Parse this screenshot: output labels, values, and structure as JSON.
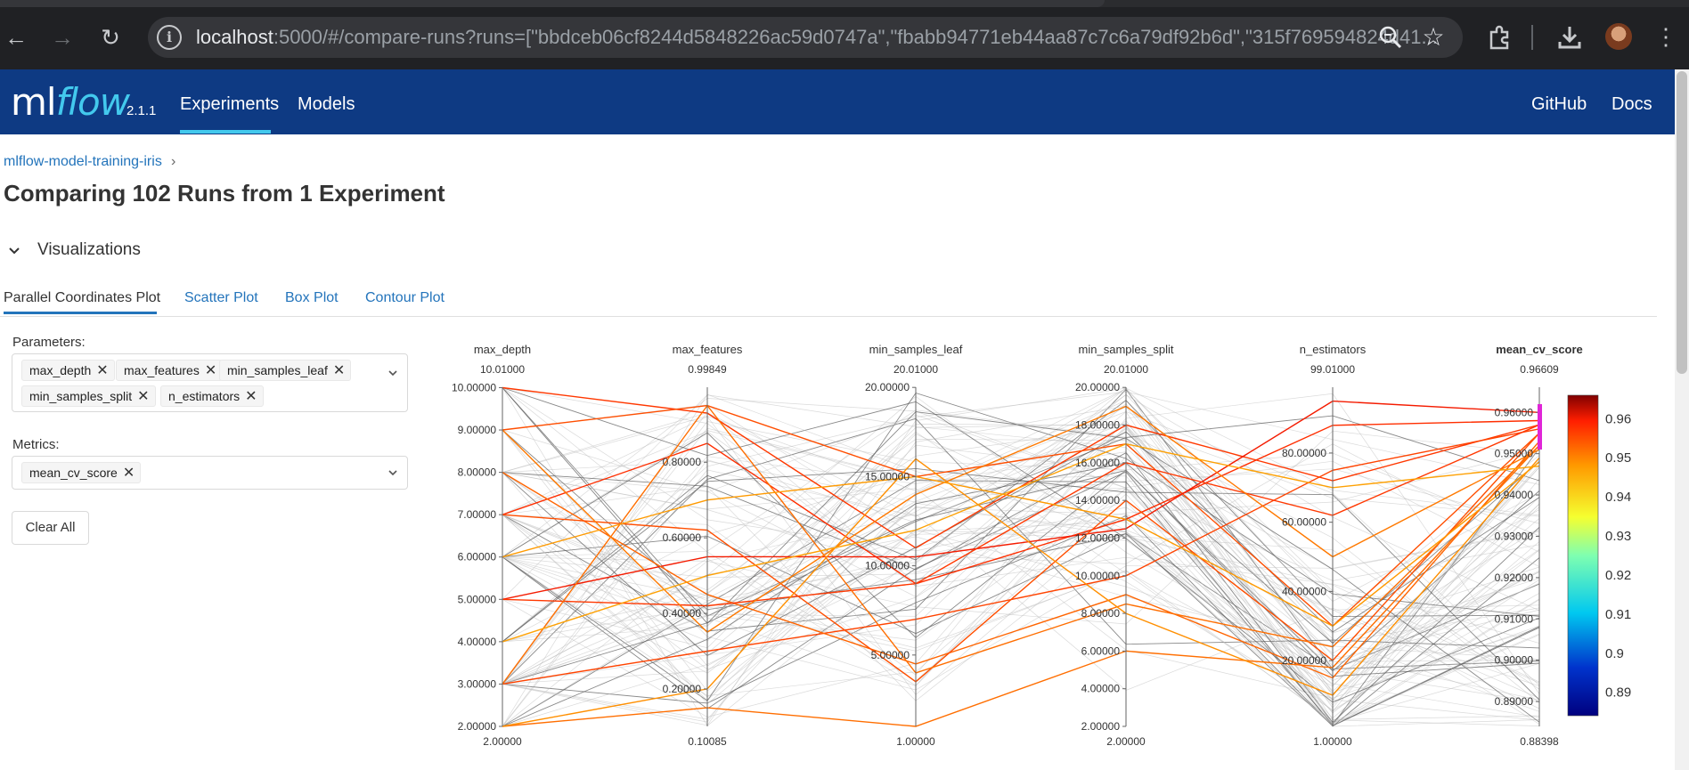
{
  "browser": {
    "url_host": "localhost",
    "url_rest": ":5000/#/compare-runs?runs=[\"bbdceb06cf8244d5848226ac59d0747a\",\"fbabb94771eb44aa87c7c6a79df92b6d\",\"315f769594824d41..."
  },
  "header": {
    "logo_ml": "ml",
    "logo_flow": "flow",
    "version": "2.1.1",
    "nav": [
      "Experiments",
      "Models"
    ],
    "nav_right": [
      "GitHub",
      "Docs"
    ]
  },
  "breadcrumb": {
    "experiment": "mlflow-model-training-iris",
    "sep": "›"
  },
  "page_title": "Comparing 102 Runs from 1 Experiment",
  "section": {
    "toggle": "⌄",
    "label": "Visualizations"
  },
  "tabs": [
    "Parallel Coordinates Plot",
    "Scatter Plot",
    "Box Plot",
    "Contour Plot"
  ],
  "parameters": {
    "label": "Parameters:",
    "chips": [
      "max_depth",
      "max_features",
      "min_samples_leaf",
      "min_samples_split",
      "n_estimators"
    ]
  },
  "metrics": {
    "label": "Metrics:",
    "chips": [
      "mean_cv_score"
    ]
  },
  "clear_all": "Clear All",
  "colors": {
    "header_bg": "#0e3a83",
    "accent": "#43c9ed",
    "link": "#2374bb",
    "metric_title": "#1e8a1e"
  },
  "chart_data": {
    "type": "parallel_coordinates",
    "axes": [
      {
        "name": "max_depth",
        "max_label": "10.01000",
        "min_label": "2.00000",
        "range": [
          2,
          10.01
        ],
        "ticks": [
          "2.00000",
          "3.00000",
          "4.00000",
          "5.00000",
          "6.00000",
          "7.00000",
          "8.00000",
          "9.00000",
          "10.00000"
        ],
        "tick_values": [
          2,
          3,
          4,
          5,
          6,
          7,
          8,
          9,
          10
        ]
      },
      {
        "name": "max_features",
        "max_label": "0.99849",
        "min_label": "0.10085",
        "range": [
          0.10085,
          0.99849
        ],
        "ticks": [
          "0.20000",
          "0.40000",
          "0.60000",
          "0.80000"
        ],
        "tick_values": [
          0.2,
          0.4,
          0.6,
          0.8
        ]
      },
      {
        "name": "min_samples_leaf",
        "max_label": "20.01000",
        "min_label": "1.00000",
        "range": [
          1,
          20.01
        ],
        "ticks": [
          "5.00000",
          "10.00000",
          "15.00000",
          "20.00000"
        ],
        "tick_values": [
          5,
          10,
          15,
          20
        ]
      },
      {
        "name": "min_samples_split",
        "max_label": "20.01000",
        "min_label": "2.00000",
        "range": [
          2,
          20.01
        ],
        "ticks": [
          "2.00000",
          "4.00000",
          "6.00000",
          "8.00000",
          "10.00000",
          "12.00000",
          "14.00000",
          "16.00000",
          "18.00000",
          "20.00000"
        ],
        "tick_values": [
          2,
          4,
          6,
          8,
          10,
          12,
          14,
          16,
          18,
          20
        ]
      },
      {
        "name": "n_estimators",
        "max_label": "99.01000",
        "min_label": "1.00000",
        "range": [
          1,
          99.01
        ],
        "ticks": [
          "20.00000",
          "40.00000",
          "60.00000",
          "80.00000"
        ],
        "tick_values": [
          20,
          40,
          60,
          80
        ]
      },
      {
        "name": "mean_cv_score",
        "max_label": "0.96609",
        "min_label": "0.88398",
        "range": [
          0.88398,
          0.96609
        ],
        "ticks": [
          "0.89000",
          "0.90000",
          "0.91000",
          "0.92000",
          "0.93000",
          "0.94000",
          "0.95000",
          "0.96000"
        ],
        "tick_values": [
          0.89,
          0.9,
          0.91,
          0.92,
          0.93,
          0.94,
          0.95,
          0.96
        ],
        "highlight": true,
        "constraint_range": [
          0.951,
          0.962
        ]
      }
    ],
    "colorscale": {
      "ticks": [
        "0.96",
        "0.95",
        "0.94",
        "0.93",
        "0.92",
        "0.91",
        "0.9",
        "0.89"
      ],
      "tick_values": [
        0.96,
        0.95,
        0.94,
        0.93,
        0.92,
        0.91,
        0.9,
        0.89
      ],
      "range": [
        0.884,
        0.966
      ]
    },
    "highlighted_runs": [
      [
        10,
        0.93,
        11,
        18,
        72,
        0.957
      ],
      [
        9,
        0.95,
        15,
        17,
        30,
        0.955
      ],
      [
        7,
        0.85,
        9,
        13,
        88,
        0.958
      ],
      [
        5,
        0.55,
        10.5,
        12.5,
        95,
        0.96
      ],
      [
        3,
        0.3,
        7,
        10,
        75,
        0.956
      ],
      [
        2,
        0.15,
        1,
        6,
        18,
        0.952
      ],
      [
        8,
        0.45,
        4.5,
        9,
        15,
        0.953
      ],
      [
        5,
        0.42,
        9,
        16,
        62,
        0.957
      ],
      [
        7,
        0.62,
        3.5,
        14,
        20,
        0.955
      ],
      [
        3,
        0.95,
        4,
        8.5,
        24,
        0.952
      ],
      [
        9,
        0.35,
        14,
        19,
        50,
        0.951
      ],
      [
        2,
        0.2,
        16,
        8,
        10,
        0.949
      ],
      [
        6,
        0.7,
        15,
        13,
        30,
        0.948
      ],
      [
        4,
        0.5,
        12,
        17,
        70,
        0.947
      ]
    ]
  }
}
